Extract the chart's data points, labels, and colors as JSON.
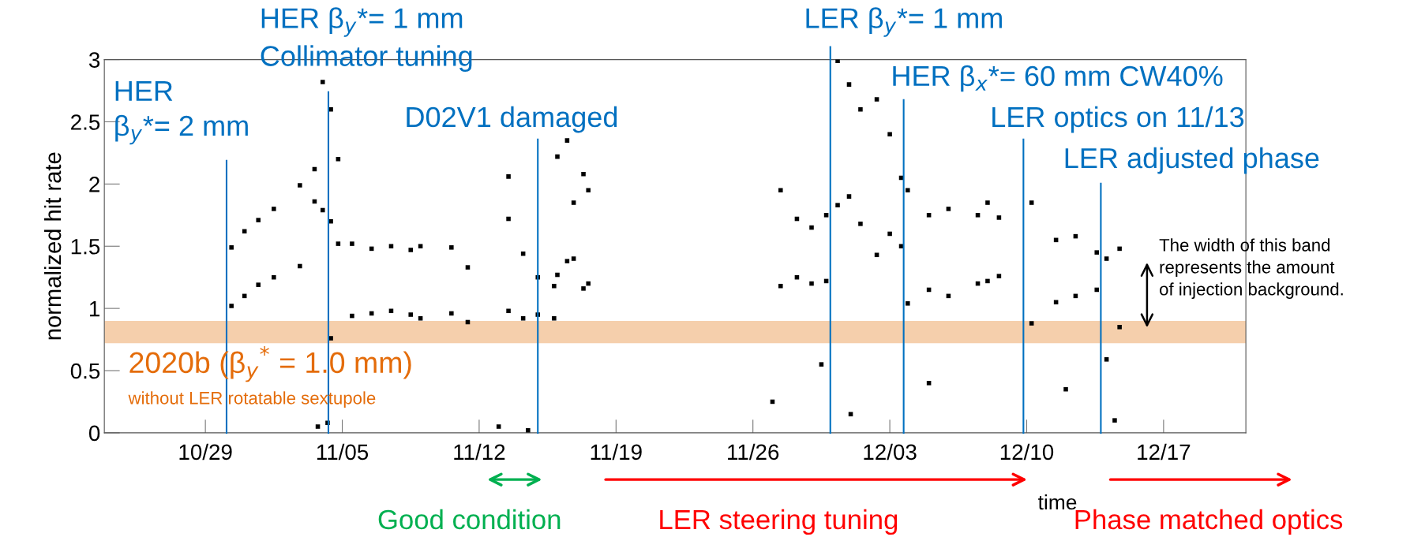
{
  "chart_data": {
    "type": "scatter",
    "ylabel": "normalized hit rate",
    "xlabel": "time",
    "x": [
      "2020-10-30T08:00",
      "2020-10-30T08:00",
      "2020-10-31T00:00",
      "2020-10-31T00:00",
      "2020-10-31T17:00",
      "2020-10-31T17:00",
      "2020-11-01T12:00",
      "2020-11-01T12:00",
      "2020-11-02T20:00",
      "2020-11-02T20:00",
      "2020-11-03T14:00",
      "2020-11-03T14:00",
      "2020-11-04T00:00",
      "2020-11-04T00:00",
      "2020-11-04T10:00",
      "2020-11-04T10:00",
      "2020-11-04T19:00",
      "2020-11-04T19:00",
      "2020-11-03T18:00",
      "2020-11-04T06:00",
      "2020-11-04T10:00",
      "2020-11-05T12:00",
      "2020-11-05T12:00",
      "2020-11-06T12:00",
      "2020-11-06T12:00",
      "2020-11-07T12:00",
      "2020-11-07T12:00",
      "2020-11-08T12:00",
      "2020-11-08T12:00",
      "2020-11-09T00:00",
      "2020-11-09T00:00",
      "2020-11-10T14:00",
      "2020-11-10T14:00",
      "2020-11-11T10:00",
      "2020-11-11T10:00",
      "2020-11-13T12:00",
      "2020-11-13T12:00",
      "2020-11-13T12:00",
      "2020-11-14T06:00",
      "2020-11-14T06:00",
      "2020-11-15T00:00",
      "2020-11-15T00:00",
      "2020-11-15T20:00",
      "2020-11-15T20:00",
      "2020-11-13T00:00",
      "2020-11-14T12:00",
      "2020-11-16T00:00",
      "2020-11-16T00:00",
      "2020-11-16T12:00",
      "2020-11-16T12:00",
      "2020-11-16T20:00",
      "2020-11-16T20:00",
      "2020-11-17T08:00",
      "2020-11-17T08:00",
      "2020-11-17T14:00",
      "2020-11-17T14:00",
      "2020-11-27T10:00",
      "2020-11-27T10:00",
      "2020-11-28T06:00",
      "2020-11-28T06:00",
      "2020-11-29T00:00",
      "2020-11-29T00:00",
      "2020-11-29T18:00",
      "2020-11-29T18:00",
      "2020-11-30T08:00",
      "2020-11-30T08:00",
      "2020-11-30T22:00",
      "2020-11-30T22:00",
      "2020-12-01T12:00",
      "2020-12-01T12:00",
      "2020-12-02T08:00",
      "2020-12-02T08:00",
      "2020-12-03T00:00",
      "2020-12-03T00:00",
      "2020-12-03T14:00",
      "2020-12-03T14:00",
      "2020-12-03T22:00",
      "2020-12-03T22:00",
      "2020-12-05T00:00",
      "2020-12-05T00:00",
      "2020-12-06T00:00",
      "2020-12-06T00:00",
      "2020-12-07T12:00",
      "2020-12-07T12:00",
      "2020-12-08T00:00",
      "2020-12-08T00:00",
      "2020-12-08T14:00",
      "2020-12-08T14:00",
      "2020-12-10T06:00",
      "2020-12-10T06:00",
      "2020-12-11T12:00",
      "2020-12-11T12:00",
      "2020-12-12T12:00",
      "2020-12-12T12:00",
      "2020-12-13T14:00",
      "2020-12-13T14:00",
      "2020-12-14T02:00",
      "2020-12-14T02:00",
      "2020-12-14T18:00",
      "2020-12-14T18:00",
      "2020-11-27T00:00",
      "2020-11-29T12:00",
      "2020-12-01T00:00",
      "2020-12-05T00:00",
      "2020-12-12T00:00",
      "2020-12-14T12:00"
    ],
    "values": [
      1.02,
      1.49,
      1.1,
      1.62,
      1.19,
      1.71,
      1.25,
      1.8,
      1.34,
      1.99,
      1.86,
      2.12,
      1.79,
      2.82,
      1.7,
      2.6,
      1.52,
      2.2,
      0.05,
      0.08,
      0.76,
      0.94,
      1.52,
      0.96,
      1.48,
      0.98,
      1.5,
      0.95,
      1.47,
      0.92,
      1.5,
      0.96,
      1.49,
      0.89,
      1.33,
      0.98,
      1.72,
      2.06,
      0.92,
      1.44,
      0.95,
      1.25,
      0.92,
      1.18,
      0.05,
      0.02,
      1.27,
      2.22,
      1.38,
      2.35,
      1.4,
      1.85,
      1.16,
      2.08,
      1.2,
      1.95,
      1.18,
      1.95,
      1.25,
      1.72,
      1.2,
      1.65,
      1.22,
      1.75,
      1.83,
      2.99,
      1.9,
      2.8,
      1.68,
      2.6,
      1.43,
      2.68,
      1.6,
      2.4,
      1.5,
      2.05,
      1.04,
      1.95,
      1.15,
      1.75,
      1.1,
      1.8,
      1.2,
      1.75,
      1.22,
      1.85,
      1.26,
      1.73,
      0.88,
      1.85,
      1.05,
      1.55,
      1.1,
      1.58,
      1.15,
      1.45,
      0.59,
      1.4,
      0.85,
      1.48,
      0.25,
      0.55,
      0.15,
      0.4,
      0.35,
      0.1
    ],
    "color": "#000000",
    "marker": "square",
    "xlim": [
      "2020-10-23T20:00",
      "2020-12-21T05:00"
    ],
    "xticks": [
      {
        "value": "2020-10-29",
        "label": "10/29"
      },
      {
        "value": "2020-11-05",
        "label": "11/05"
      },
      {
        "value": "2020-11-12",
        "label": "11/12"
      },
      {
        "value": "2020-11-19",
        "label": "11/19"
      },
      {
        "value": "2020-11-26",
        "label": "11/26"
      },
      {
        "value": "2020-12-03",
        "label": "12/03"
      },
      {
        "value": "2020-12-10",
        "label": "12/10"
      },
      {
        "value": "2020-12-17",
        "label": "12/17"
      }
    ],
    "ylim": [
      0,
      3
    ],
    "yticks": [
      0,
      0.5,
      1,
      1.5,
      2,
      2.5,
      3
    ],
    "ref_lines": [
      {
        "axis": "x",
        "value": "2020-10-30T02:00",
        "label": "HER\nβ$_{y}$*= 2 mm",
        "color": "#0070c0"
      },
      {
        "axis": "x",
        "value": "2020-11-04T07:00",
        "label": "HER β$_{y}$*= 1 mm\nCollimator tuning",
        "color": "#0070c0"
      },
      {
        "axis": "x",
        "value": "2020-11-15T00:00",
        "label": "D02V1 damaged",
        "color": "#0070c0"
      },
      {
        "axis": "x",
        "value": "2020-11-29T23:00",
        "label": "LER β$_{y}$*= 1 mm",
        "color": "#0070c0"
      },
      {
        "axis": "x",
        "value": "2020-12-03T17:00",
        "label": "HER β$_{x}$*= 60 mm CW40%",
        "color": "#0070c0"
      },
      {
        "axis": "x",
        "value": "2020-12-09T20:00",
        "label": "LER optics on 11/13",
        "color": "#0070c0"
      },
      {
        "axis": "x",
        "value": "2020-12-13T19:00",
        "label": "LER adjusted phase",
        "color": "#0070c0"
      }
    ],
    "bands": [
      {
        "axis": "y",
        "from": 0.72,
        "to": 0.9,
        "label": "2020b (β$_{y}$$^{*}$ = 1.0 mm)",
        "color": "#f5cfac"
      }
    ],
    "annotations": [
      "without LER rotatable sextupole",
      "The width of this band\nrepresents the amount\nof injection background.",
      "Good condition",
      "LER steering tuning",
      "Phase matched optics"
    ],
    "grid": false,
    "legend": false
  }
}
